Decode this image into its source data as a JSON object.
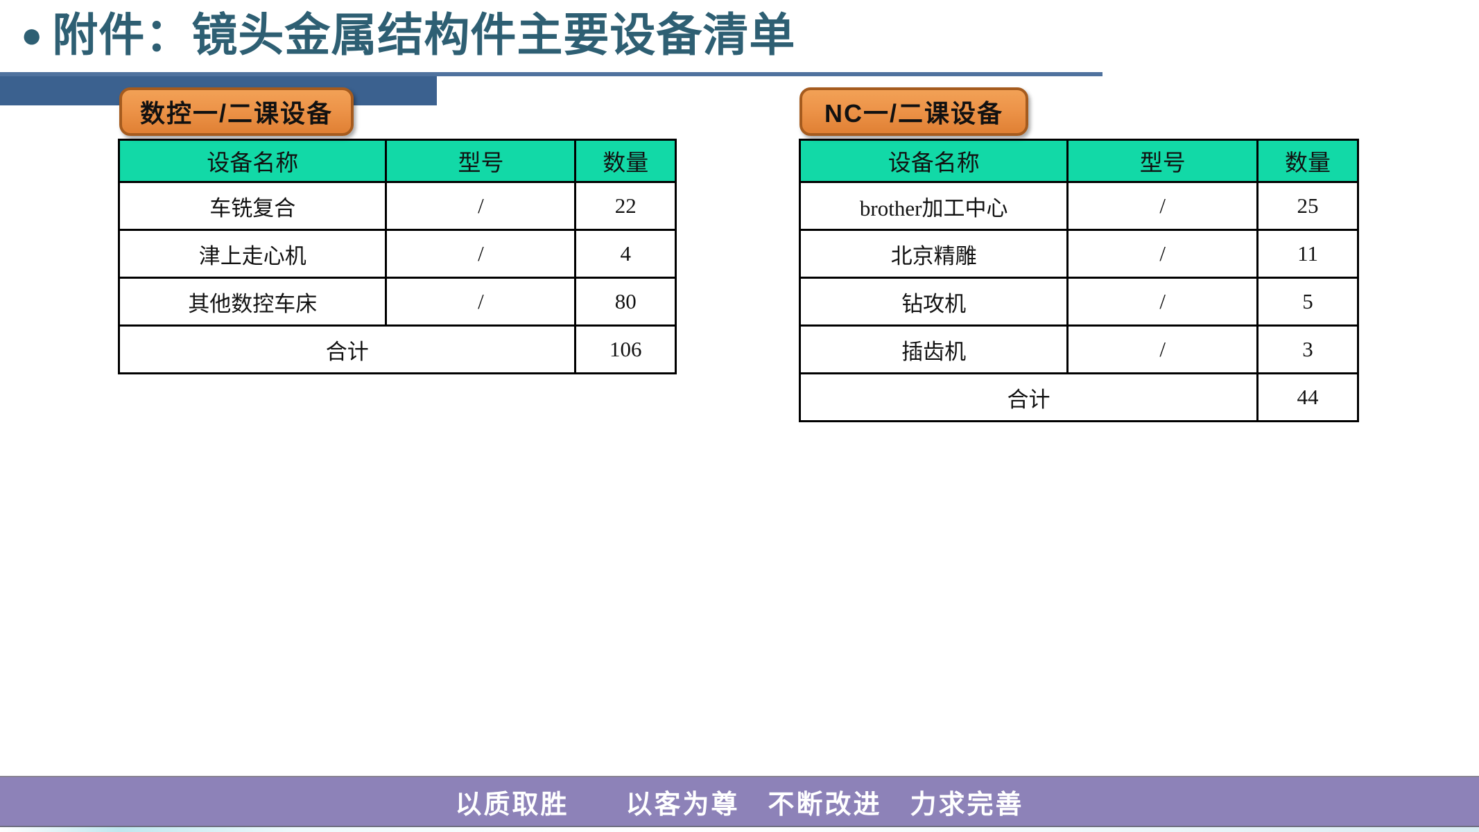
{
  "title": {
    "bullet": "●",
    "text": "附件：镜头金属结构件主要设备清单"
  },
  "sections": [
    {
      "badge": "数控一/二课设备",
      "headers": [
        "设备名称",
        "型号",
        "数量"
      ],
      "rows": [
        [
          "车铣复合",
          "/",
          "22"
        ],
        [
          "津上走心机",
          "/",
          "4"
        ],
        [
          "其他数控车床",
          "/",
          "80"
        ]
      ],
      "total_label": "合计",
      "total_value": "106"
    },
    {
      "badge": "NC一/二课设备",
      "headers": [
        "设备名称",
        "型号",
        "数量"
      ],
      "rows": [
        [
          "brother加工中心",
          "/",
          "25"
        ],
        [
          "北京精雕",
          "/",
          "11"
        ],
        [
          "钻攻机",
          "/",
          "5"
        ],
        [
          "插齿机",
          "/",
          "3"
        ]
      ],
      "total_label": "合计",
      "total_value": "44"
    }
  ],
  "footer": {
    "slogan": "以质取胜　　以客为尊　不断改进　力求完善"
  },
  "colors": {
    "title_text": "#2E5F73",
    "rule_thick": "#3B618F",
    "rule_thin": "#4F729E",
    "table_header_bg": "#12D9A7",
    "badge_bg": "#ED9449",
    "badge_border": "#A55B1E",
    "table_border": "#000000",
    "footer_bg": "#8D82B8",
    "footer_text": "#FFFFFF"
  }
}
